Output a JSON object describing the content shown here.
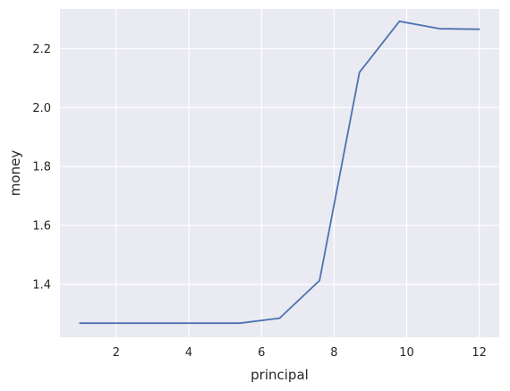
{
  "chart_data": {
    "type": "line",
    "title": "",
    "xlabel": "principal",
    "ylabel": "money",
    "xlim": [
      0.45,
      12.55
    ],
    "ylim": [
      1.22,
      2.335
    ],
    "xticks": [
      2,
      4,
      6,
      8,
      10,
      12
    ],
    "yticks": [
      1.4,
      1.6,
      1.8,
      2.0,
      2.2
    ],
    "xtick_labels": [
      "2",
      "4",
      "6",
      "8",
      "10",
      "12"
    ],
    "ytick_labels": [
      "1.4",
      "1.6",
      "1.8",
      "2.0",
      "2.2"
    ],
    "grid": true,
    "series": [
      {
        "color": "#4c72b0",
        "x": [
          1.0,
          2.1,
          3.2,
          4.3,
          5.4,
          6.5,
          7.6,
          8.7,
          9.8,
          10.9,
          12.0
        ],
        "y": [
          1.268,
          1.268,
          1.268,
          1.268,
          1.268,
          1.285,
          1.413,
          2.12,
          2.293,
          2.268,
          2.266
        ]
      }
    ]
  },
  "colors": {
    "plot_background": "#eaeaf2",
    "grid": "#ffffff",
    "line": "#4c72b0"
  }
}
